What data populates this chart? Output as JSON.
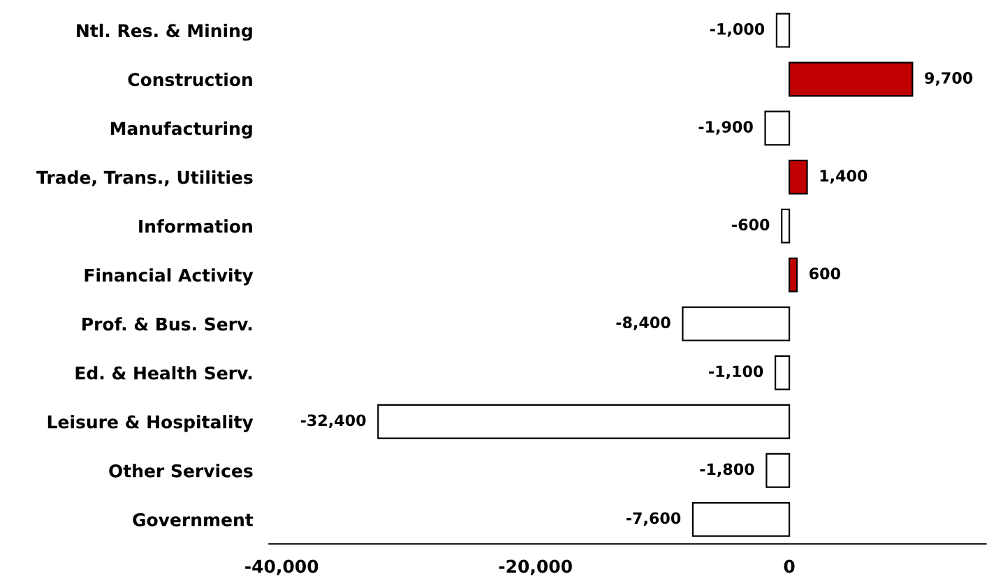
{
  "chart_data": {
    "type": "bar",
    "orientation": "horizontal",
    "categories": [
      "Ntl. Res. & Mining",
      "Construction",
      "Manufacturing",
      "Trade, Trans., Utilities",
      "Information",
      "Financial Activity",
      "Prof. & Bus. Serv.",
      "Ed. & Health Serv.",
      "Leisure & Hospitality",
      "Other Services",
      "Government"
    ],
    "values": [
      -1000,
      9700,
      -1900,
      1400,
      -600,
      600,
      -8400,
      -1100,
      -32400,
      -1800,
      -7600
    ],
    "colors": [
      "#ffffff",
      "#c00000",
      "#ffffff",
      "#c00000",
      "#ffffff",
      "#c00000",
      "#ffffff",
      "#ffffff",
      "#ffffff",
      "#ffffff",
      "#ffffff"
    ],
    "value_labels": [
      "-1,000",
      "9,700",
      "-1,900",
      "1,400",
      "-600",
      "600",
      "-8,400",
      "-1,100",
      "-32,400",
      "-1,800",
      "-7,600"
    ],
    "xlim": [
      -41000,
      15500
    ],
    "xticks": [
      {
        "value": -40000,
        "label": "-40,000"
      },
      {
        "value": -20000,
        "label": "-20,000"
      },
      0
    ],
    "grid": false,
    "legend": false
  }
}
